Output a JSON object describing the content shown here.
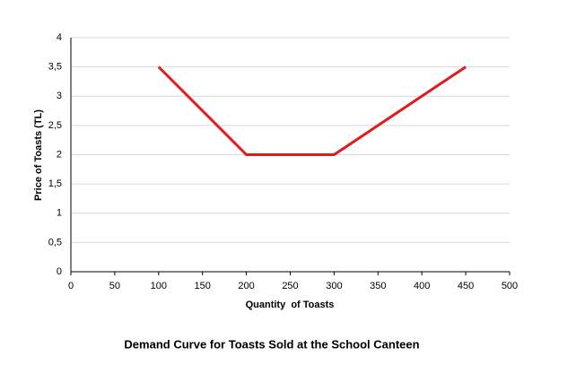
{
  "chart_data": {
    "type": "line",
    "title": "Demand Curve for Toasts Sold at the School Canteen",
    "x_label": "Quantity  of Toasts",
    "y_label": "Price of Toasts (TL)",
    "x": [
      100,
      200,
      300,
      450
    ],
    "values": [
      3.5,
      2,
      2,
      3.5
    ],
    "color": "#e31a1c",
    "xlim": [
      0,
      500
    ],
    "xticks": [
      0,
      50,
      100,
      150,
      200,
      250,
      300,
      350,
      400,
      450,
      500
    ],
    "ylim": [
      0,
      4
    ],
    "yticks": [
      0,
      {
        "value": 0.5,
        "label": "0,5"
      },
      1,
      {
        "value": 1.5,
        "label": "1,5"
      },
      2,
      {
        "value": 2.5,
        "label": "2,5"
      },
      3,
      {
        "value": 3.5,
        "label": "3,5"
      },
      4
    ],
    "grid": true
  }
}
